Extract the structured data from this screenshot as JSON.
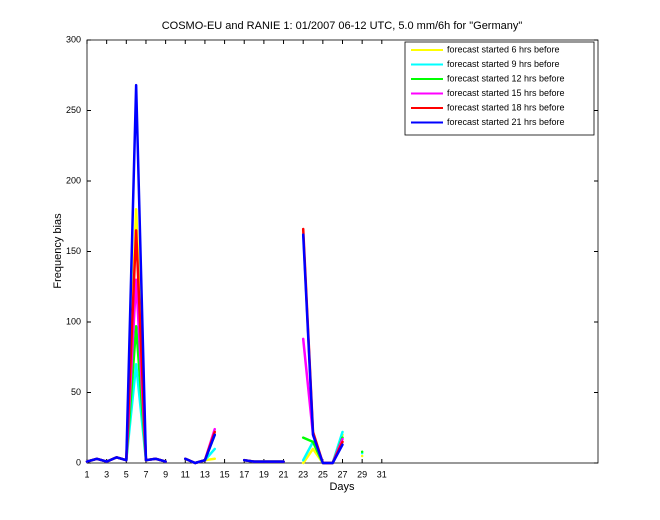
{
  "chart_data": {
    "type": "line",
    "title": "COSMO-EU and RANIE 1: 01/2007 06-12 UTC, 5.0 mm/6h for \"Germany\"",
    "xlabel": "Days",
    "ylabel": "Frequency bias",
    "x": [
      1,
      2,
      3,
      4,
      5,
      6,
      7,
      8,
      9,
      10,
      11,
      12,
      13,
      14,
      15,
      16,
      17,
      18,
      19,
      20,
      21,
      22,
      23,
      24,
      25,
      26,
      27,
      28,
      29,
      30,
      31
    ],
    "xlim": [
      1,
      53
    ],
    "ylim": [
      0,
      300
    ],
    "xticks": [
      1,
      3,
      5,
      7,
      9,
      11,
      13,
      15,
      17,
      19,
      21,
      23,
      25,
      27,
      29,
      31
    ],
    "yticks": [
      0,
      50,
      100,
      150,
      200,
      250,
      300
    ],
    "legend": "top-right",
    "series": [
      {
        "name": "forecast started 6 hrs before",
        "color": "#ffff00",
        "values": [
          1,
          3,
          1,
          4,
          2,
          180,
          2,
          3,
          1,
          null,
          3,
          0,
          2,
          3,
          null,
          null,
          2,
          1,
          1,
          1,
          1,
          null,
          0,
          10,
          0,
          0,
          20,
          null,
          5,
          null,
          null
        ]
      },
      {
        "name": "forecast started 9 hrs before",
        "color": "#00ffff",
        "values": [
          1,
          3,
          1,
          4,
          2,
          70,
          2,
          3,
          1,
          null,
          3,
          0,
          2,
          10,
          null,
          null,
          2,
          1,
          1,
          1,
          1,
          null,
          2,
          15,
          0,
          0,
          22,
          null,
          7,
          null,
          null
        ]
      },
      {
        "name": "forecast started 12 hrs before",
        "color": "#00ff00",
        "values": [
          1,
          3,
          1,
          4,
          2,
          97,
          2,
          3,
          1,
          null,
          3,
          0,
          2,
          20,
          null,
          null,
          2,
          1,
          1,
          1,
          1,
          null,
          18,
          15,
          0,
          0,
          18,
          null,
          8,
          null,
          null
        ]
      },
      {
        "name": "forecast started 15 hrs before",
        "color": "#ff00ff",
        "values": [
          1,
          3,
          1,
          4,
          2,
          130,
          2,
          3,
          1,
          null,
          3,
          0,
          2,
          24,
          null,
          null,
          2,
          1,
          1,
          1,
          1,
          null,
          88,
          20,
          0,
          0,
          17,
          null,
          null,
          null,
          null
        ]
      },
      {
        "name": "forecast started 18 hrs before",
        "color": "#ff0000",
        "values": [
          1,
          3,
          1,
          4,
          2,
          165,
          2,
          3,
          1,
          null,
          3,
          0,
          2,
          22,
          null,
          null,
          2,
          1,
          1,
          1,
          1,
          null,
          166,
          22,
          0,
          0,
          15,
          null,
          null,
          null,
          null
        ]
      },
      {
        "name": "forecast started 21 hrs before",
        "color": "#0000ff",
        "values": [
          1,
          3,
          1,
          4,
          2,
          268,
          2,
          3,
          1,
          null,
          3,
          0,
          2,
          20,
          null,
          null,
          2,
          1,
          1,
          1,
          1,
          null,
          162,
          20,
          0,
          0,
          13,
          null,
          null,
          null,
          null
        ]
      }
    ]
  }
}
